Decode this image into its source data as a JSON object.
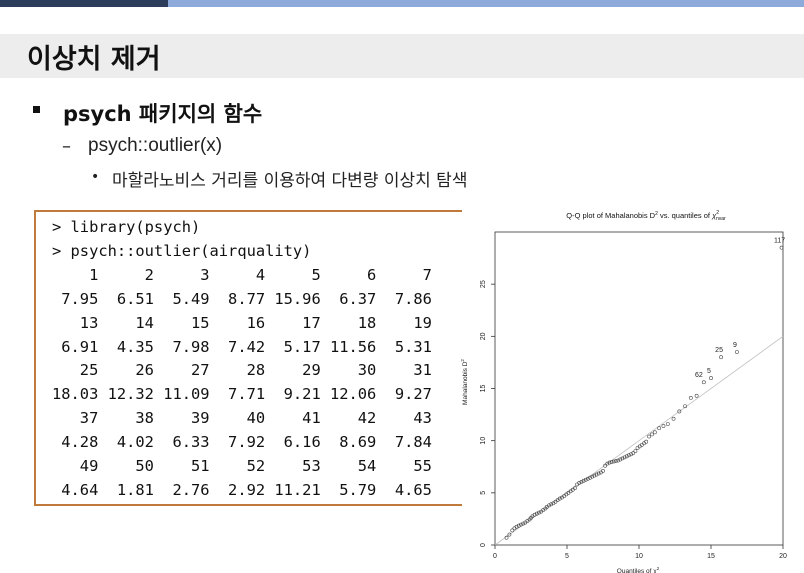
{
  "slide": {
    "title": "이상치 제거",
    "bullet1": "psych 패키지의 함수",
    "bullet2": "psych::outlier(x)",
    "bullet3": "마할라노비스 거리를 이용하여 다변량 이상치 탐색"
  },
  "code": {
    "lines": [
      "> library(psych)",
      "> psych::outlier(airquality)",
      "    1     2     3     4     5     6     7",
      " 7.95  6.51  5.49  8.77 15.96  6.37  7.86",
      "   13    14    15    16    17    18    19",
      " 6.91  4.35  7.98  7.42  5.17 11.56  5.31",
      "   25    26    27    28    29    30    31",
      "18.03 12.32 11.09  7.71  9.21 12.06  9.27",
      "   37    38    39    40    41    42    43",
      " 4.28  4.02  6.33  7.92  6.16  8.69  7.84",
      "   49    50    51    52    53    54    55",
      " 4.64  1.81  2.76  2.92 11.21  5.79  4.65"
    ]
  },
  "chart_data": {
    "type": "scatter",
    "title_prefix": "Q-Q plot of Mahalanobis D",
    "title_sup": "2",
    "title_mid": " vs. quantiles of ",
    "title_chi": "χ",
    "title_chi_sup": "2",
    "title_chi_sub": "nvar",
    "xlabel": "Quantiles of χ",
    "xlabel_sup": "2",
    "ylabel": "Mahalanobis D",
    "ylabel_sup": "2",
    "xlim": [
      0,
      20
    ],
    "ylim": [
      0,
      30
    ],
    "xticks": [
      0,
      5,
      10,
      15,
      20
    ],
    "yticks": [
      0,
      5,
      10,
      15,
      20,
      25
    ],
    "grid": false,
    "reference_line": {
      "from": [
        0,
        0
      ],
      "to": [
        20,
        20
      ]
    },
    "colors": {
      "points": "#444444",
      "reference_line": "#bfbfbf",
      "axis": "#333333"
    },
    "labeled_points": [
      {
        "label": "117",
        "x": 19.9,
        "y": 28.5
      },
      {
        "label": "9",
        "x": 16.8,
        "y": 18.5
      },
      {
        "label": "25",
        "x": 15.7,
        "y": 18.0
      },
      {
        "label": "62",
        "x": 14.3,
        "y": 15.6
      },
      {
        "label": "5",
        "x": 15.0,
        "y": 16.0
      }
    ],
    "points": [
      [
        0.8,
        0.7
      ],
      [
        1.0,
        1.0
      ],
      [
        1.2,
        1.4
      ],
      [
        1.35,
        1.6
      ],
      [
        1.5,
        1.75
      ],
      [
        1.65,
        1.85
      ],
      [
        1.8,
        1.95
      ],
      [
        1.95,
        2.05
      ],
      [
        2.1,
        2.15
      ],
      [
        2.25,
        2.3
      ],
      [
        2.4,
        2.45
      ],
      [
        2.5,
        2.6
      ],
      [
        2.6,
        2.75
      ],
      [
        2.75,
        2.9
      ],
      [
        2.9,
        3.0
      ],
      [
        3.05,
        3.1
      ],
      [
        3.2,
        3.2
      ],
      [
        3.35,
        3.35
      ],
      [
        3.5,
        3.5
      ],
      [
        3.6,
        3.65
      ],
      [
        3.75,
        3.8
      ],
      [
        3.9,
        3.9
      ],
      [
        4.05,
        4.0
      ],
      [
        4.2,
        4.15
      ],
      [
        4.35,
        4.3
      ],
      [
        4.5,
        4.45
      ],
      [
        4.65,
        4.55
      ],
      [
        4.8,
        4.7
      ],
      [
        4.95,
        4.85
      ],
      [
        5.1,
        5.0
      ],
      [
        5.25,
        5.15
      ],
      [
        5.4,
        5.3
      ],
      [
        5.55,
        5.45
      ],
      [
        5.7,
        5.8
      ],
      [
        5.85,
        5.95
      ],
      [
        6.0,
        6.05
      ],
      [
        6.15,
        6.15
      ],
      [
        6.3,
        6.25
      ],
      [
        6.45,
        6.35
      ],
      [
        6.6,
        6.45
      ],
      [
        6.75,
        6.55
      ],
      [
        6.9,
        6.65
      ],
      [
        7.05,
        6.75
      ],
      [
        7.2,
        6.85
      ],
      [
        7.35,
        6.95
      ],
      [
        7.5,
        7.1
      ],
      [
        7.65,
        7.6
      ],
      [
        7.8,
        7.8
      ],
      [
        7.95,
        7.9
      ],
      [
        8.1,
        7.95
      ],
      [
        8.25,
        8.0
      ],
      [
        8.4,
        8.05
      ],
      [
        8.55,
        8.1
      ],
      [
        8.7,
        8.2
      ],
      [
        8.85,
        8.3
      ],
      [
        9.0,
        8.4
      ],
      [
        9.15,
        8.5
      ],
      [
        9.3,
        8.6
      ],
      [
        9.45,
        8.7
      ],
      [
        9.6,
        8.8
      ],
      [
        9.75,
        9.0
      ],
      [
        9.9,
        9.3
      ],
      [
        10.05,
        9.45
      ],
      [
        10.2,
        9.6
      ],
      [
        10.35,
        9.75
      ],
      [
        10.5,
        9.9
      ],
      [
        10.7,
        10.4
      ],
      [
        10.9,
        10.6
      ],
      [
        11.1,
        10.8
      ],
      [
        11.4,
        11.2
      ],
      [
        11.7,
        11.4
      ],
      [
        12.0,
        11.6
      ],
      [
        12.4,
        12.1
      ],
      [
        12.8,
        12.8
      ],
      [
        13.2,
        13.3
      ],
      [
        13.6,
        14.1
      ],
      [
        14.0,
        14.3
      ],
      [
        14.5,
        15.6
      ],
      [
        15.0,
        16.0
      ],
      [
        15.7,
        18.0
      ],
      [
        16.8,
        18.5
      ],
      [
        19.9,
        28.5
      ]
    ]
  }
}
